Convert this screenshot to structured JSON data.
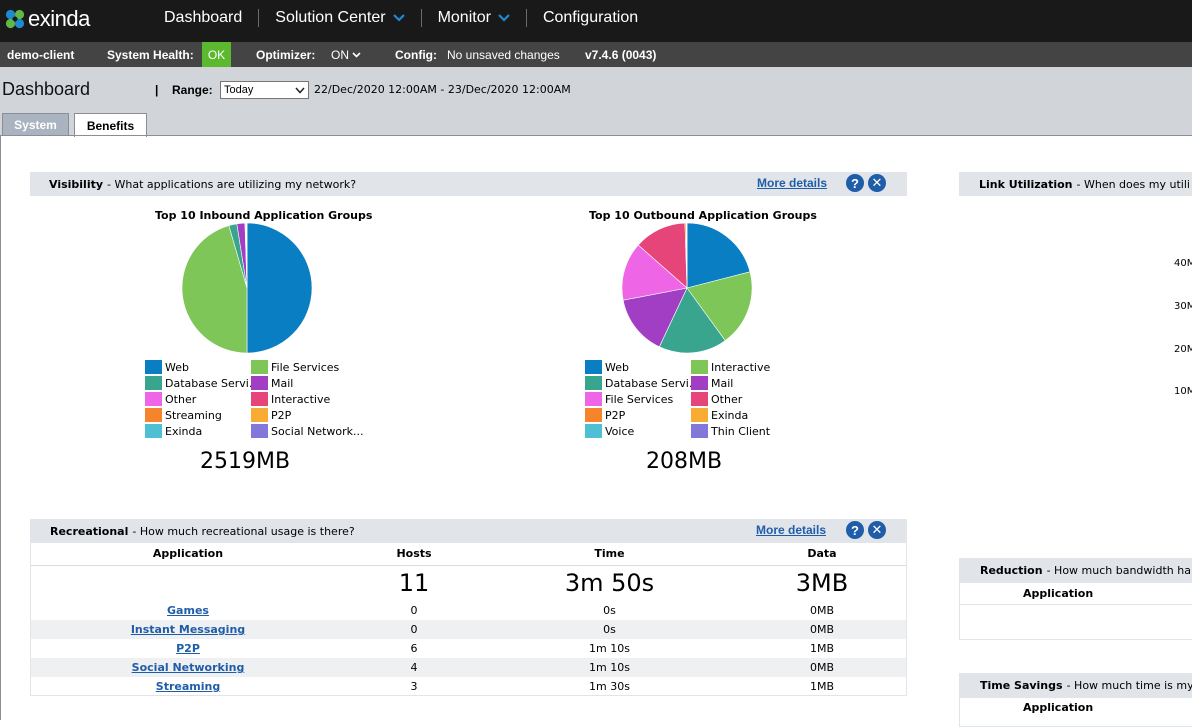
{
  "brand": {
    "name": "exinda"
  },
  "nav": {
    "items": [
      {
        "label": "Dashboard",
        "has_menu": false
      },
      {
        "label": "Solution Center",
        "has_menu": true
      },
      {
        "label": "Monitor",
        "has_menu": true
      },
      {
        "label": "Configuration",
        "has_menu": false
      }
    ]
  },
  "status": {
    "client": "demo-client",
    "health_label": "System Health:",
    "health_value": "OK",
    "optimizer_label": "Optimizer:",
    "optimizer_value": "ON",
    "config_label": "Config:",
    "config_value": "No unsaved changes",
    "version": "v7.4.6 (0043)"
  },
  "page": {
    "title": "Dashboard",
    "separator": "|",
    "range_label": "Range:",
    "range_value": "Today",
    "range_dates": "22/Dec/2020 12:00AM - 23/Dec/2020 12:00AM",
    "tabs": [
      {
        "label": "System",
        "active": false
      },
      {
        "label": "Benefits",
        "active": true
      }
    ]
  },
  "visibility": {
    "title": "Visibility",
    "subtitle": "- What applications are utilizing my network?",
    "more_details": "More details",
    "inbound": {
      "title": "Top 10 Inbound Application Groups",
      "total": "2519MB",
      "legend": [
        {
          "label": "Web",
          "color": "#0a7ec2"
        },
        {
          "label": "File Services",
          "color": "#7dc657"
        },
        {
          "label": "Database Servi...",
          "color": "#3aa58e"
        },
        {
          "label": "Mail",
          "color": "#a23ec4"
        },
        {
          "label": "Other",
          "color": "#ee66e6"
        },
        {
          "label": "Interactive",
          "color": "#e6457a"
        },
        {
          "label": "Streaming",
          "color": "#f5842d"
        },
        {
          "label": "P2P",
          "color": "#f9ac33"
        },
        {
          "label": "Exinda",
          "color": "#4fc0d3"
        },
        {
          "label": "Social Network...",
          "color": "#8377d9"
        }
      ]
    },
    "outbound": {
      "title": "Top 10 Outbound Application Groups",
      "total": "208MB",
      "legend": [
        {
          "label": "Web",
          "color": "#0a7ec2"
        },
        {
          "label": "Interactive",
          "color": "#7dc657"
        },
        {
          "label": "Database Servi...",
          "color": "#3aa58e"
        },
        {
          "label": "Mail",
          "color": "#a23ec4"
        },
        {
          "label": "File Services",
          "color": "#ee66e6"
        },
        {
          "label": "Other",
          "color": "#e6457a"
        },
        {
          "label": "P2P",
          "color": "#f5842d"
        },
        {
          "label": "Exinda",
          "color": "#f9ac33"
        },
        {
          "label": "Voice",
          "color": "#4fc0d3"
        },
        {
          "label": "Thin Client",
          "color": "#8377d9"
        }
      ]
    }
  },
  "chart_data": [
    {
      "type": "pie",
      "title": "Top 10 Inbound Application Groups",
      "labels": [
        "Web",
        "File Services",
        "Database Servi...",
        "Mail",
        "Other",
        "Interactive",
        "Streaming",
        "P2P",
        "Exinda",
        "Social Network..."
      ],
      "values": [
        50.0,
        45.5,
        2.0,
        2.0,
        0.2,
        0.1,
        0.05,
        0.05,
        0.05,
        0.05
      ]
    },
    {
      "type": "pie",
      "title": "Top 10 Outbound Application Groups",
      "labels": [
        "Web",
        "Interactive",
        "Database Servi...",
        "Mail",
        "File Services",
        "Other",
        "P2P",
        "Exinda",
        "Voice",
        "Thin Client"
      ],
      "values": [
        21.0,
        19.0,
        17.0,
        15.0,
        14.5,
        13.0,
        0.3,
        0.1,
        0.05,
        0.05
      ]
    }
  ],
  "recreational": {
    "title": "Recreational",
    "subtitle": "- How much recreational usage is there?",
    "more_details": "More details",
    "columns": [
      "Application",
      "Hosts",
      "Time",
      "Data"
    ],
    "totals": {
      "hosts": "11",
      "time": "3m 50s",
      "data": "3MB"
    },
    "rows": [
      {
        "app": "Games",
        "hosts": "0",
        "time": "0s",
        "data": "0MB"
      },
      {
        "app": "Instant Messaging",
        "hosts": "0",
        "time": "0s",
        "data": "0MB"
      },
      {
        "app": "P2P",
        "hosts": "6",
        "time": "1m 10s",
        "data": "1MB"
      },
      {
        "app": "Social Networking",
        "hosts": "4",
        "time": "1m 10s",
        "data": "0MB"
      },
      {
        "app": "Streaming",
        "hosts": "3",
        "time": "1m 30s",
        "data": "1MB"
      }
    ]
  },
  "link_util": {
    "title": "Link Utilization",
    "subtitle": "- When does my utili",
    "ticks": [
      "40M",
      "30M",
      "20M",
      "10M"
    ]
  },
  "reduction": {
    "title": "Reduction",
    "subtitle": "- How much bandwidth ha",
    "col": "Application"
  },
  "time_savings": {
    "title": "Time Savings",
    "subtitle": "- How much time is my",
    "col": "Application"
  }
}
